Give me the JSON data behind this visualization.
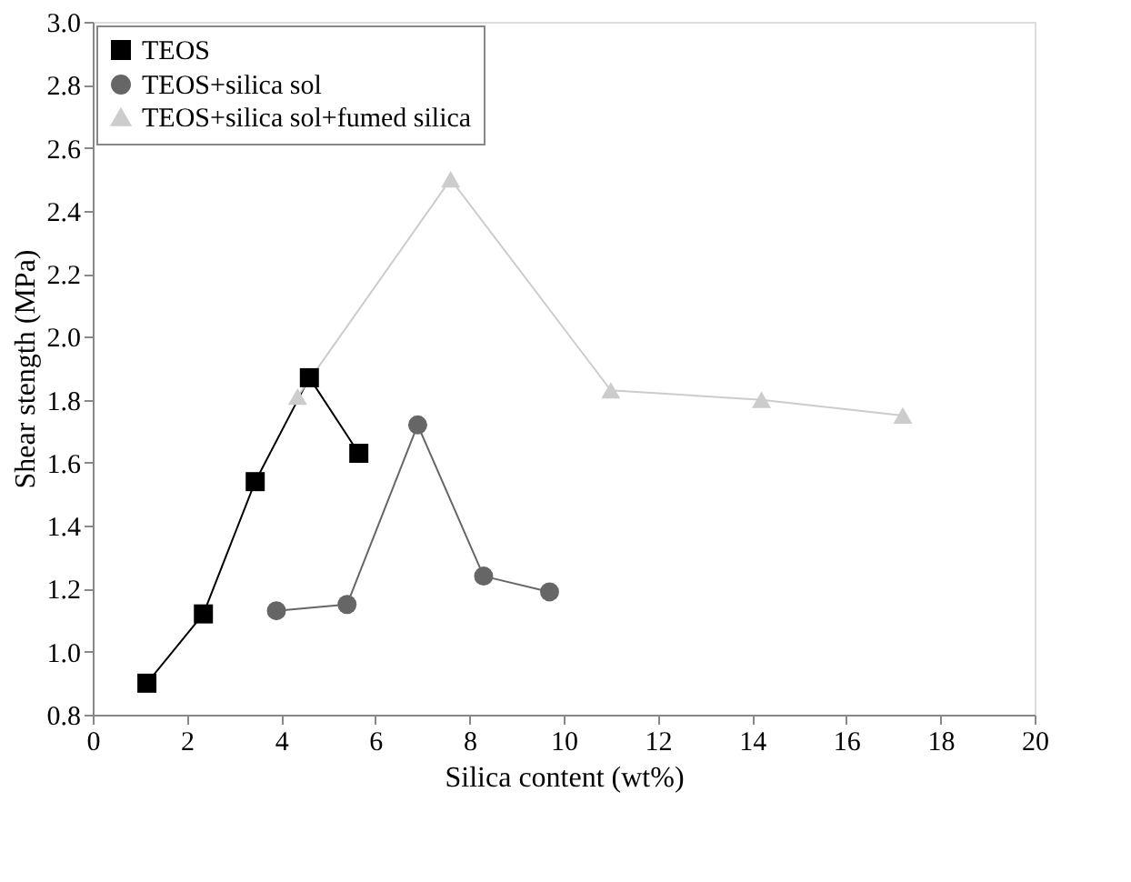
{
  "chart_data": {
    "type": "line",
    "xlabel": "Silica content (wt%)",
    "ylabel": "Shear stength (MPa)",
    "xlim": [
      0,
      20
    ],
    "xticks": [
      0,
      2,
      4,
      6,
      8,
      10,
      12,
      14,
      16,
      18,
      20
    ],
    "ylim": [
      0.8,
      3.0
    ],
    "yticks": [
      {
        "value": 0.8,
        "label": "0.8"
      },
      {
        "value": 1,
        "label": "1.0"
      },
      {
        "value": 1.2,
        "label": "1.2"
      },
      {
        "value": 1.4,
        "label": "1.4"
      },
      {
        "value": 1.6,
        "label": "1.6"
      },
      {
        "value": 1.8,
        "label": "1.8"
      },
      {
        "value": 2,
        "label": "2.0"
      },
      {
        "value": 2.2,
        "label": "2.2"
      },
      {
        "value": 2.4,
        "label": "2.4"
      },
      {
        "value": 2.6,
        "label": "2.6"
      },
      {
        "value": 2.8,
        "label": "2.8"
      },
      {
        "value": 3,
        "label": "3.0"
      }
    ],
    "grid": false,
    "legend": "top left",
    "line_style": "solid",
    "series": [
      {
        "name": "TEOS",
        "color": "#000000",
        "marker": "square",
        "x": [
          1.15,
          2.35,
          3.45,
          4.6,
          5.65
        ],
        "values": [
          0.9,
          1.12,
          1.54,
          1.87,
          1.63
        ]
      },
      {
        "name": "TEOS+silica sol",
        "color": "#666666",
        "marker": "circle",
        "x": [
          3.9,
          5.4,
          6.9,
          8.3,
          9.7
        ],
        "values": [
          1.13,
          1.15,
          1.72,
          1.24,
          1.19
        ]
      },
      {
        "name": "TEOS+silica sol+fumed silica",
        "color": "#cccccc",
        "marker": "triangle",
        "x": [
          4.35,
          7.6,
          11.0,
          14.2,
          17.2
        ],
        "values": [
          1.81,
          2.5,
          1.83,
          1.8,
          1.75
        ]
      }
    ]
  }
}
